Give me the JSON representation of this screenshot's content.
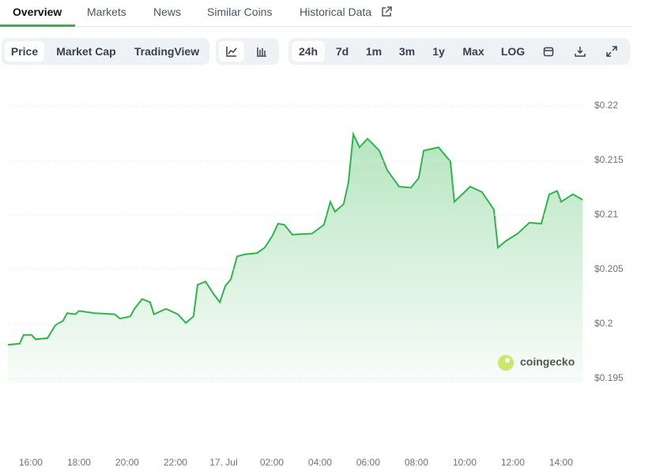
{
  "tabs": [
    "Overview",
    "Markets",
    "News",
    "Similar Coins",
    "Historical Data"
  ],
  "chart_types": [
    "Price",
    "Market Cap",
    "TradingView"
  ],
  "ranges": [
    "24h",
    "7d",
    "1m",
    "3m",
    "1y",
    "Max",
    "LOG"
  ],
  "watermark": "coingecko",
  "chart_data": {
    "type": "area",
    "color": "#2fb44a",
    "grid": true,
    "x": [
      15.05,
      15.54,
      15.7,
      16.03,
      16.2,
      16.69,
      17.02,
      17.34,
      17.51,
      17.84,
      18.0,
      18.66,
      19.48,
      19.7,
      20.13,
      20.3,
      20.62,
      20.95,
      21.11,
      21.61,
      22.1,
      22.43,
      22.75,
      22.92,
      23.25,
      23.57,
      23.84,
      24.07,
      24.3,
      24.56,
      24.89,
      25.38,
      25.7,
      26.03,
      26.26,
      26.52,
      26.85,
      27.67,
      28.16,
      28.43,
      28.62,
      28.98,
      29.18,
      29.38,
      29.64,
      29.97,
      30.46,
      30.79,
      31.28,
      31.77,
      32.1,
      32.3,
      32.92,
      33.41,
      33.57,
      34.23,
      34.72,
      35.21,
      35.38,
      35.7,
      36.2,
      36.69,
      37.18,
      37.51,
      37.84,
      38.0,
      38.49,
      38.89
    ],
    "values": [
      0.1981,
      0.1982,
      0.199,
      0.199,
      0.1986,
      0.1987,
      0.1999,
      0.2003,
      0.201,
      0.2009,
      0.2012,
      0.201,
      0.2009,
      0.2005,
      0.2007,
      0.2014,
      0.2023,
      0.202,
      0.2009,
      0.2014,
      0.2009,
      0.2001,
      0.2007,
      0.2036,
      0.2039,
      0.2028,
      0.202,
      0.2035,
      0.2041,
      0.2062,
      0.2064,
      0.2065,
      0.207,
      0.2081,
      0.2092,
      0.2091,
      0.2082,
      0.2083,
      0.2091,
      0.2112,
      0.2103,
      0.211,
      0.213,
      0.2174,
      0.2162,
      0.217,
      0.2159,
      0.2141,
      0.2126,
      0.2125,
      0.2134,
      0.2159,
      0.2162,
      0.2149,
      0.2112,
      0.2126,
      0.2121,
      0.2105,
      0.207,
      0.2076,
      0.2083,
      0.2093,
      0.2092,
      0.2119,
      0.2122,
      0.2112,
      0.2119,
      0.2114
    ],
    "xlim": [
      15.05,
      38.89
    ],
    "xticks": [
      {
        "value": 16,
        "label": "16:00"
      },
      {
        "value": 18,
        "label": "18:00"
      },
      {
        "value": 20,
        "label": "20:00"
      },
      {
        "value": 22,
        "label": "22:00"
      },
      {
        "value": 24,
        "label": "17. Jul"
      },
      {
        "value": 26,
        "label": "02:00"
      },
      {
        "value": 28,
        "label": "04:00"
      },
      {
        "value": 30,
        "label": "06:00"
      },
      {
        "value": 32,
        "label": "08:00"
      },
      {
        "value": 34,
        "label": "10:00"
      },
      {
        "value": 36,
        "label": "12:00"
      },
      {
        "value": 38,
        "label": "14:00"
      }
    ],
    "ylim": [
      0.195,
      0.22
    ],
    "yticks": [
      {
        "value": 0.195,
        "label": "$0.195"
      },
      {
        "value": 0.2,
        "label": "$0.2"
      },
      {
        "value": 0.205,
        "label": "$0.205"
      },
      {
        "value": 0.21,
        "label": "$0.21"
      },
      {
        "value": 0.215,
        "label": "$0.215"
      },
      {
        "value": 0.22,
        "label": "$0.22"
      }
    ]
  }
}
